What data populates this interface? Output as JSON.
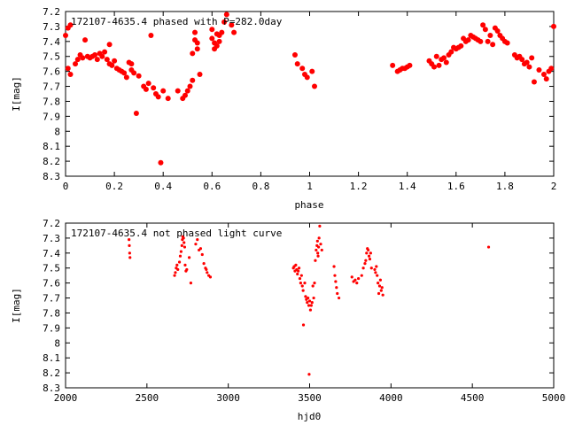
{
  "chart_data": [
    {
      "type": "scatter",
      "title": "172107-4635.4 phased with P=282.0day",
      "xlabel": "phase",
      "ylabel": "I[mag]",
      "xlim": [
        0,
        2
      ],
      "ylim": [
        7.2,
        8.3
      ],
      "y_inverted": true,
      "xticks": [
        "0",
        "0.2",
        "0.4",
        "0.6",
        "0.8",
        "1",
        "1.2",
        "1.4",
        "1.6",
        "1.8",
        "2"
      ],
      "xtick_values": [
        0,
        0.2,
        0.4,
        0.6,
        0.8,
        1.0,
        1.2,
        1.4,
        1.6,
        1.8,
        2.0
      ],
      "yticks": [
        "7.2",
        "7.3",
        "7.4",
        "7.5",
        "7.6",
        "7.7",
        "7.8",
        "7.9",
        "8",
        "8.1",
        "8.2",
        "8.3"
      ],
      "ytick_values": [
        7.2,
        7.3,
        7.4,
        7.5,
        7.6,
        7.7,
        7.8,
        7.9,
        8.0,
        8.1,
        8.2,
        8.3
      ],
      "grid": false,
      "marker_color": "#ff0000",
      "marker_size": "large",
      "points": [
        [
          0.0,
          7.36
        ],
        [
          0.01,
          7.31
        ],
        [
          0.02,
          7.29
        ],
        [
          0.01,
          7.58
        ],
        [
          0.02,
          7.62
        ],
        [
          0.04,
          7.55
        ],
        [
          0.05,
          7.52
        ],
        [
          0.06,
          7.49
        ],
        [
          0.07,
          7.51
        ],
        [
          0.08,
          7.39
        ],
        [
          0.09,
          7.5
        ],
        [
          0.1,
          7.51
        ],
        [
          0.11,
          7.5
        ],
        [
          0.12,
          7.49
        ],
        [
          0.13,
          7.52
        ],
        [
          0.14,
          7.48
        ],
        [
          0.15,
          7.5
        ],
        [
          0.16,
          7.47
        ],
        [
          0.17,
          7.52
        ],
        [
          0.18,
          7.55
        ],
        [
          0.18,
          7.42
        ],
        [
          0.19,
          7.56
        ],
        [
          0.2,
          7.53
        ],
        [
          0.21,
          7.58
        ],
        [
          0.22,
          7.59
        ],
        [
          0.23,
          7.6
        ],
        [
          0.24,
          7.61
        ],
        [
          0.25,
          7.64
        ],
        [
          0.26,
          7.54
        ],
        [
          0.27,
          7.55
        ],
        [
          0.27,
          7.59
        ],
        [
          0.28,
          7.61
        ],
        [
          0.29,
          7.88
        ],
        [
          0.3,
          7.63
        ],
        [
          0.32,
          7.7
        ],
        [
          0.33,
          7.72
        ],
        [
          0.34,
          7.68
        ],
        [
          0.35,
          7.36
        ],
        [
          0.36,
          7.71
        ],
        [
          0.37,
          7.75
        ],
        [
          0.38,
          7.77
        ],
        [
          0.39,
          8.21
        ],
        [
          0.4,
          7.73
        ],
        [
          0.42,
          7.78
        ],
        [
          0.46,
          7.73
        ],
        [
          0.48,
          7.78
        ],
        [
          0.49,
          7.76
        ],
        [
          0.5,
          7.73
        ],
        [
          0.51,
          7.7
        ],
        [
          0.52,
          7.66
        ],
        [
          0.52,
          7.48
        ],
        [
          0.53,
          7.34
        ],
        [
          0.53,
          7.39
        ],
        [
          0.54,
          7.45
        ],
        [
          0.54,
          7.41
        ],
        [
          0.55,
          7.62
        ],
        [
          0.6,
          7.32
        ],
        [
          0.6,
          7.38
        ],
        [
          0.61,
          7.41
        ],
        [
          0.61,
          7.45
        ],
        [
          0.62,
          7.35
        ],
        [
          0.62,
          7.43
        ],
        [
          0.63,
          7.36
        ],
        [
          0.63,
          7.4
        ],
        [
          0.64,
          7.34
        ],
        [
          0.65,
          7.27
        ],
        [
          0.66,
          7.22
        ],
        [
          0.68,
          7.29
        ],
        [
          0.69,
          7.34
        ],
        [
          0.94,
          7.49
        ],
        [
          0.95,
          7.55
        ],
        [
          0.97,
          7.58
        ],
        [
          0.98,
          7.62
        ],
        [
          0.99,
          7.64
        ],
        [
          1.01,
          7.6
        ],
        [
          1.02,
          7.7
        ],
        [
          1.34,
          7.56
        ],
        [
          1.36,
          7.6
        ],
        [
          1.37,
          7.59
        ],
        [
          1.38,
          7.58
        ],
        [
          1.39,
          7.58
        ],
        [
          1.4,
          7.57
        ],
        [
          1.41,
          7.56
        ],
        [
          1.49,
          7.53
        ],
        [
          1.5,
          7.55
        ],
        [
          1.51,
          7.57
        ],
        [
          1.52,
          7.5
        ],
        [
          1.53,
          7.56
        ],
        [
          1.54,
          7.52
        ],
        [
          1.55,
          7.51
        ],
        [
          1.56,
          7.54
        ],
        [
          1.57,
          7.49
        ],
        [
          1.58,
          7.47
        ],
        [
          1.59,
          7.44
        ],
        [
          1.6,
          7.45
        ],
        [
          1.61,
          7.44
        ],
        [
          1.62,
          7.43
        ],
        [
          1.63,
          7.38
        ],
        [
          1.64,
          7.4
        ],
        [
          1.65,
          7.39
        ],
        [
          1.66,
          7.36
        ],
        [
          1.67,
          7.37
        ],
        [
          1.68,
          7.38
        ],
        [
          1.69,
          7.39
        ],
        [
          1.7,
          7.4
        ],
        [
          1.71,
          7.29
        ],
        [
          1.72,
          7.32
        ],
        [
          1.73,
          7.4
        ],
        [
          1.74,
          7.36
        ],
        [
          1.75,
          7.42
        ],
        [
          1.76,
          7.31
        ],
        [
          1.77,
          7.33
        ],
        [
          1.78,
          7.36
        ],
        [
          1.79,
          7.38
        ],
        [
          1.8,
          7.4
        ],
        [
          1.81,
          7.41
        ],
        [
          1.84,
          7.49
        ],
        [
          1.85,
          7.51
        ],
        [
          1.86,
          7.5
        ],
        [
          1.87,
          7.52
        ],
        [
          1.88,
          7.55
        ],
        [
          1.89,
          7.54
        ],
        [
          1.9,
          7.57
        ],
        [
          1.91,
          7.51
        ],
        [
          1.92,
          7.67
        ],
        [
          1.94,
          7.59
        ],
        [
          1.96,
          7.62
        ],
        [
          1.97,
          7.65
        ],
        [
          1.98,
          7.6
        ],
        [
          1.99,
          7.58
        ],
        [
          2.0,
          7.3
        ]
      ]
    },
    {
      "type": "scatter",
      "title": "172107-4635.4 not phased light curve",
      "xlabel": "hjd0",
      "ylabel": "I[mag]",
      "xlim": [
        2000,
        5000
      ],
      "ylim": [
        7.2,
        8.3
      ],
      "y_inverted": true,
      "xticks": [
        "2000",
        "2500",
        "3000",
        "3500",
        "4000",
        "4500",
        "5000"
      ],
      "xtick_values": [
        2000,
        2500,
        3000,
        3500,
        4000,
        4500,
        5000
      ],
      "yticks": [
        "7.2",
        "7.3",
        "7.4",
        "7.5",
        "7.6",
        "7.7",
        "7.8",
        "7.9",
        "8",
        "8.1",
        "8.2",
        "8.3"
      ],
      "ytick_values": [
        7.2,
        7.3,
        7.4,
        7.5,
        7.6,
        7.7,
        7.8,
        7.9,
        8.0,
        8.1,
        8.2,
        8.3
      ],
      "grid": false,
      "marker_color": "#ff0000",
      "marker_size": "small",
      "points": [
        [
          2390,
          7.31
        ],
        [
          2392,
          7.35
        ],
        [
          2394,
          7.4
        ],
        [
          2396,
          7.43
        ],
        [
          2670,
          7.55
        ],
        [
          2675,
          7.53
        ],
        [
          2680,
          7.5
        ],
        [
          2685,
          7.48
        ],
        [
          2690,
          7.51
        ],
        [
          2700,
          7.46
        ],
        [
          2705,
          7.42
        ],
        [
          2710,
          7.39
        ],
        [
          2715,
          7.35
        ],
        [
          2718,
          7.31
        ],
        [
          2720,
          7.29
        ],
        [
          2725,
          7.3
        ],
        [
          2728,
          7.33
        ],
        [
          2732,
          7.36
        ],
        [
          2735,
          7.48
        ],
        [
          2740,
          7.52
        ],
        [
          2745,
          7.51
        ],
        [
          2760,
          7.43
        ],
        [
          2770,
          7.6
        ],
        [
          2800,
          7.34
        ],
        [
          2810,
          7.31
        ],
        [
          2820,
          7.38
        ],
        [
          2830,
          7.37
        ],
        [
          2840,
          7.41
        ],
        [
          2850,
          7.47
        ],
        [
          2860,
          7.5
        ],
        [
          2865,
          7.51
        ],
        [
          2870,
          7.53
        ],
        [
          2880,
          7.55
        ],
        [
          2890,
          7.56
        ],
        [
          3400,
          7.5
        ],
        [
          3405,
          7.49
        ],
        [
          3410,
          7.52
        ],
        [
          3415,
          7.48
        ],
        [
          3420,
          7.51
        ],
        [
          3425,
          7.54
        ],
        [
          3430,
          7.52
        ],
        [
          3435,
          7.5
        ],
        [
          3440,
          7.57
        ],
        [
          3445,
          7.6
        ],
        [
          3450,
          7.55
        ],
        [
          3455,
          7.62
        ],
        [
          3460,
          7.65
        ],
        [
          3462,
          7.88
        ],
        [
          3470,
          7.6
        ],
        [
          3475,
          7.69
        ],
        [
          3480,
          7.71
        ],
        [
          3485,
          7.73
        ],
        [
          3490,
          7.7
        ],
        [
          3495,
          7.75
        ],
        [
          3497,
          8.21
        ],
        [
          3500,
          7.72
        ],
        [
          3505,
          7.78
        ],
        [
          3510,
          7.75
        ],
        [
          3515,
          7.73
        ],
        [
          3520,
          7.62
        ],
        [
          3525,
          7.7
        ],
        [
          3530,
          7.6
        ],
        [
          3535,
          7.45
        ],
        [
          3540,
          7.38
        ],
        [
          3545,
          7.35
        ],
        [
          3548,
          7.32
        ],
        [
          3550,
          7.4
        ],
        [
          3552,
          7.42
        ],
        [
          3555,
          7.36
        ],
        [
          3558,
          7.3
        ],
        [
          3562,
          7.22
        ],
        [
          3568,
          7.34
        ],
        [
          3575,
          7.38
        ],
        [
          3650,
          7.49
        ],
        [
          3655,
          7.55
        ],
        [
          3660,
          7.59
        ],
        [
          3665,
          7.63
        ],
        [
          3670,
          7.67
        ],
        [
          3680,
          7.7
        ],
        [
          3760,
          7.56
        ],
        [
          3770,
          7.59
        ],
        [
          3780,
          7.58
        ],
        [
          3790,
          7.6
        ],
        [
          3800,
          7.57
        ],
        [
          3820,
          7.55
        ],
        [
          3830,
          7.5
        ],
        [
          3840,
          7.47
        ],
        [
          3845,
          7.45
        ],
        [
          3850,
          7.4
        ],
        [
          3855,
          7.37
        ],
        [
          3860,
          7.38
        ],
        [
          3865,
          7.42
        ],
        [
          3870,
          7.44
        ],
        [
          3875,
          7.4
        ],
        [
          3880,
          7.5
        ],
        [
          3900,
          7.51
        ],
        [
          3905,
          7.53
        ],
        [
          3910,
          7.49
        ],
        [
          3915,
          7.55
        ],
        [
          3920,
          7.6
        ],
        [
          3925,
          7.67
        ],
        [
          3930,
          7.62
        ],
        [
          3935,
          7.58
        ],
        [
          3940,
          7.65
        ],
        [
          3945,
          7.63
        ],
        [
          3950,
          7.68
        ],
        [
          4600,
          7.36
        ]
      ]
    }
  ]
}
